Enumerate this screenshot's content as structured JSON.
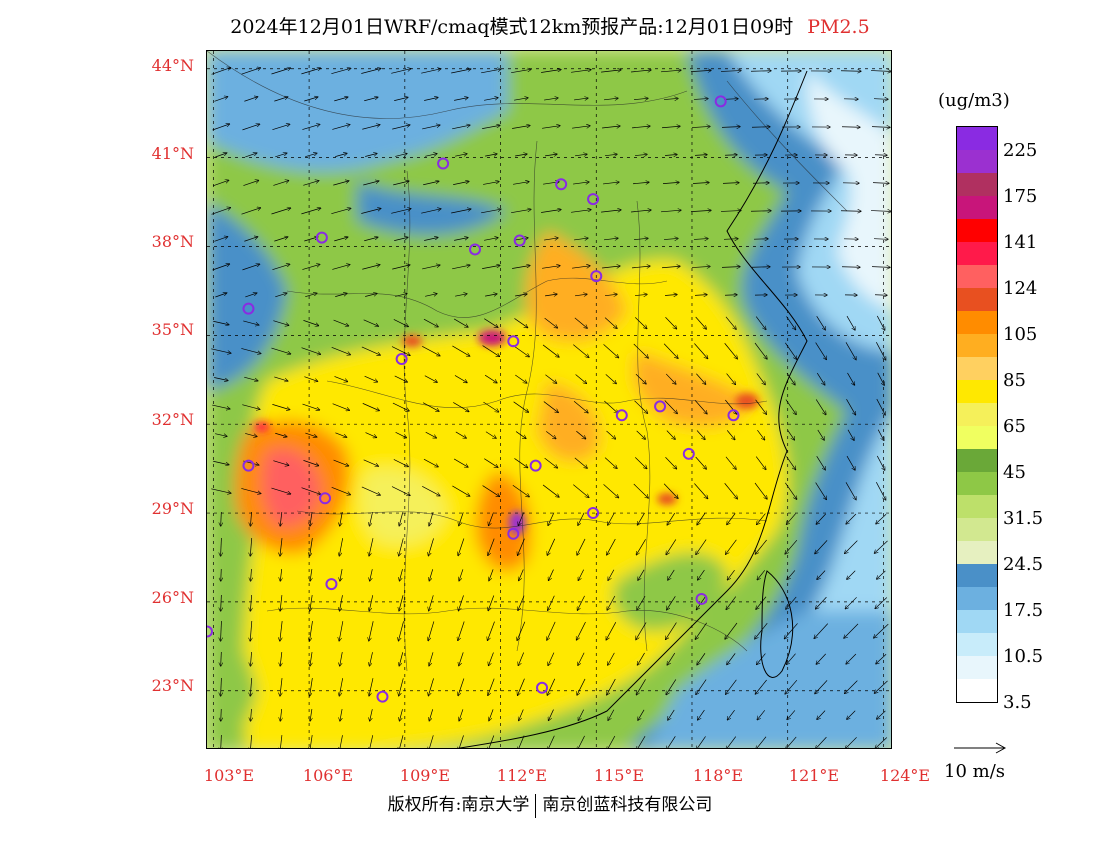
{
  "header": {
    "title": "2024年12月01日WRF/cmaq模式12km预报产品:12月01日09时",
    "species": "PM2.5"
  },
  "axes": {
    "lat_labels": [
      "44°N",
      "41°N",
      "38°N",
      "35°N",
      "32°N",
      "29°N",
      "26°N",
      "23°N"
    ],
    "lon_labels": [
      "103°E",
      "106°E",
      "109°E",
      "112°E",
      "115°E",
      "118°E",
      "121°E",
      "124°E"
    ]
  },
  "legend": {
    "unit": "(ug/m3)",
    "colors": [
      "#8a2be2",
      "#9b30d0",
      "#b03060",
      "#c8157a",
      "#ff0000",
      "#ff1a4a",
      "#ff6060",
      "#e85020",
      "#ff8c00",
      "#ffae20",
      "#ffd060",
      "#ffe800",
      "#f5f05a",
      "#f0ff60",
      "#6aa838",
      "#8ec846",
      "#bde06a",
      "#d2e890",
      "#e6f0c0",
      "#4a90c8",
      "#6cb0e0",
      "#a0d8f4",
      "#c8ecfa",
      "#e8f6fc",
      "#ffffff"
    ],
    "labels": [
      "225",
      "175",
      "141",
      "124",
      "105",
      "85",
      "65",
      "45",
      "31.5",
      "24.5",
      "17.5",
      "10.5",
      "3.5"
    ]
  },
  "wind": {
    "scale_label": "10 m/s"
  },
  "cities": [
    {
      "lon": 118.9,
      "lat": 42.9
    },
    {
      "lon": 110.2,
      "lat": 40.8
    },
    {
      "lon": 113.9,
      "lat": 40.1
    },
    {
      "lon": 114.9,
      "lat": 39.6
    },
    {
      "lon": 106.4,
      "lat": 38.3
    },
    {
      "lon": 111.2,
      "lat": 37.9
    },
    {
      "lon": 112.6,
      "lat": 38.2
    },
    {
      "lon": 115.0,
      "lat": 37.0
    },
    {
      "lon": 104.1,
      "lat": 35.9
    },
    {
      "lon": 112.4,
      "lat": 34.8
    },
    {
      "lon": 108.9,
      "lat": 34.2
    },
    {
      "lon": 115.8,
      "lat": 32.3
    },
    {
      "lon": 117.0,
      "lat": 32.6
    },
    {
      "lon": 119.3,
      "lat": 32.3
    },
    {
      "lon": 117.9,
      "lat": 31.0
    },
    {
      "lon": 104.1,
      "lat": 30.6
    },
    {
      "lon": 106.5,
      "lat": 29.5
    },
    {
      "lon": 113.1,
      "lat": 30.6
    },
    {
      "lon": 114.9,
      "lat": 29.0
    },
    {
      "lon": 112.4,
      "lat": 28.3
    },
    {
      "lon": 106.7,
      "lat": 26.6
    },
    {
      "lon": 118.3,
      "lat": 26.1
    },
    {
      "lon": 102.8,
      "lat": 25.0
    },
    {
      "lon": 108.3,
      "lat": 22.8
    },
    {
      "lon": 113.3,
      "lat": 23.1
    }
  ]
}
